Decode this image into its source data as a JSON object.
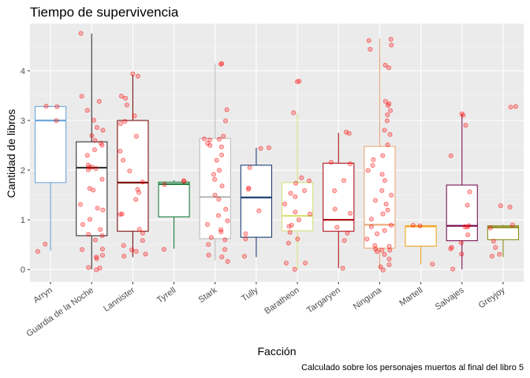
{
  "chart_data": {
    "type": "boxplot",
    "title": "Tiempo de supervivencia",
    "xlabel": "Facción",
    "ylabel": "Cantidad de libros",
    "caption": "Calculado sobre los personajes muertos al final del libro 5",
    "ylim": [
      -0.25,
      4.95
    ],
    "yticks": [
      0,
      1,
      2,
      3,
      4
    ],
    "grid": true,
    "legend": "none",
    "point_color": "#ff0000",
    "panel_color": "#ebebeb",
    "categories": [
      "Arryn",
      "Guardia de la Noche",
      "Lannister",
      "Tyrell",
      "Stark",
      "Tully",
      "Baratheon",
      "Targaryen",
      "Ninguna",
      "Martell",
      "Salvajes",
      "Greyjoy"
    ],
    "series": [
      {
        "color": "#6fa8dc",
        "q1": 1.75,
        "median": 3.0,
        "q3": 3.28,
        "whisker_low": 0.38,
        "whisker_high": 3.3,
        "points": [
          0.38,
          0.5,
          3.0,
          3.3,
          3.28
        ]
      },
      {
        "color": "#333333",
        "q1": 0.68,
        "median": 2.05,
        "q3": 2.57,
        "whisker_low": 0.0,
        "whisker_high": 4.75,
        "points": [
          0.0,
          0.02,
          0.05,
          0.2,
          0.25,
          0.3,
          0.4,
          0.42,
          0.6,
          0.7,
          0.7,
          0.8,
          0.9,
          1.0,
          1.2,
          1.25,
          1.3,
          1.6,
          1.62,
          1.8,
          2.0,
          2.05,
          2.05,
          2.05,
          2.1,
          2.3,
          2.4,
          2.5,
          2.55,
          2.6,
          2.7,
          2.8,
          2.85,
          3.0,
          3.2,
          3.4,
          3.5,
          4.75
        ]
      },
      {
        "color": "#7b0f0f",
        "q1": 0.77,
        "median": 1.75,
        "q3": 3.0,
        "whisker_low": 0.25,
        "whisker_high": 3.92,
        "points": [
          0.25,
          0.3,
          0.35,
          0.4,
          0.5,
          0.6,
          0.75,
          0.8,
          1.1,
          1.1,
          1.4,
          1.55,
          1.6,
          1.75,
          2.0,
          2.2,
          2.4,
          2.7,
          2.95,
          3.0,
          3.1,
          3.3,
          3.45,
          3.5,
          3.9,
          3.92
        ]
      },
      {
        "color": "#1b7b3c",
        "q1": 1.06,
        "median": 1.72,
        "q3": 1.76,
        "whisker_low": 0.42,
        "whisker_high": 1.8,
        "points": [
          0.42,
          1.72,
          1.76,
          1.8
        ]
      },
      {
        "color": "#bdbdbd",
        "q1": 0.62,
        "median": 1.46,
        "q3": 2.64,
        "whisker_low": 0.18,
        "whisker_high": 4.15,
        "points": [
          0.18,
          0.25,
          0.3,
          0.4,
          0.5,
          0.6,
          0.65,
          0.75,
          0.8,
          0.9,
          1.0,
          1.1,
          1.2,
          1.4,
          1.5,
          1.7,
          1.8,
          1.9,
          2.0,
          2.2,
          2.3,
          2.45,
          2.5,
          2.55,
          2.6,
          2.62,
          2.64,
          2.7,
          3.0,
          3.2,
          4.15,
          4.15
        ]
      },
      {
        "color": "#1f3f73",
        "q1": 0.65,
        "median": 1.45,
        "q3": 2.1,
        "whisker_low": 0.25,
        "whisker_high": 2.45,
        "points": [
          0.25,
          0.6,
          0.7,
          1.2,
          1.6,
          1.65,
          2.05,
          2.45,
          2.45
        ]
      },
      {
        "color": "#d9e07a",
        "q1": 0.78,
        "median": 1.08,
        "q3": 1.75,
        "whisker_low": 0.0,
        "whisker_high": 3.15,
        "points": [
          0.0,
          0.12,
          0.15,
          0.55,
          0.6,
          0.75,
          0.85,
          0.9,
          1.0,
          1.1,
          1.15,
          1.3,
          1.45,
          1.55,
          1.6,
          1.75,
          1.8,
          1.85,
          3.15,
          3.78,
          3.8
        ]
      },
      {
        "color": "#b0101a",
        "q1": 0.77,
        "median": 1.0,
        "q3": 2.14,
        "whisker_low": 0.03,
        "whisker_high": 2.75,
        "points": [
          0.03,
          0.6,
          0.75,
          0.85,
          1.15,
          1.2,
          1.6,
          1.8,
          2.14,
          2.15,
          2.75,
          2.75
        ]
      },
      {
        "color": "#e9a878",
        "q1": 0.43,
        "median": 0.9,
        "q3": 2.48,
        "whisker_low": 0.0,
        "whisker_high": 4.65,
        "points": [
          0.0,
          0.05,
          0.1,
          0.2,
          0.3,
          0.35,
          0.38,
          0.4,
          0.42,
          0.45,
          0.5,
          0.6,
          0.7,
          0.8,
          0.85,
          0.9,
          1.0,
          1.1,
          1.2,
          1.3,
          1.4,
          1.5,
          1.6,
          1.8,
          1.9,
          2.0,
          2.1,
          2.2,
          2.3,
          2.5,
          2.7,
          2.8,
          3.0,
          3.1,
          3.2,
          3.3,
          3.35,
          3.4,
          4.05,
          4.1,
          4.45,
          4.5,
          4.6,
          4.65
        ]
      },
      {
        "color": "#f5a623",
        "q1": 0.47,
        "median": 0.87,
        "q3": 0.88,
        "whisker_low": 0.1,
        "whisker_high": 0.88,
        "points": [
          0.1,
          0.87,
          0.88
        ]
      },
      {
        "color": "#7a1457",
        "q1": 0.58,
        "median": 0.88,
        "q3": 1.7,
        "whisker_low": 0.0,
        "whisker_high": 3.12,
        "points": [
          0.0,
          0.3,
          0.4,
          0.45,
          0.55,
          0.7,
          0.85,
          0.88,
          0.9,
          1.3,
          1.55,
          2.3,
          2.9,
          3.1,
          3.12
        ]
      },
      {
        "color": "#8b8b1f",
        "q1": 0.6,
        "median": 0.85,
        "q3": 0.88,
        "whisker_low": 0.25,
        "whisker_high": 0.9,
        "points": [
          0.25,
          0.3,
          0.45,
          0.55,
          0.85,
          0.88,
          1.25,
          1.3,
          3.25,
          3.27
        ]
      }
    ]
  }
}
